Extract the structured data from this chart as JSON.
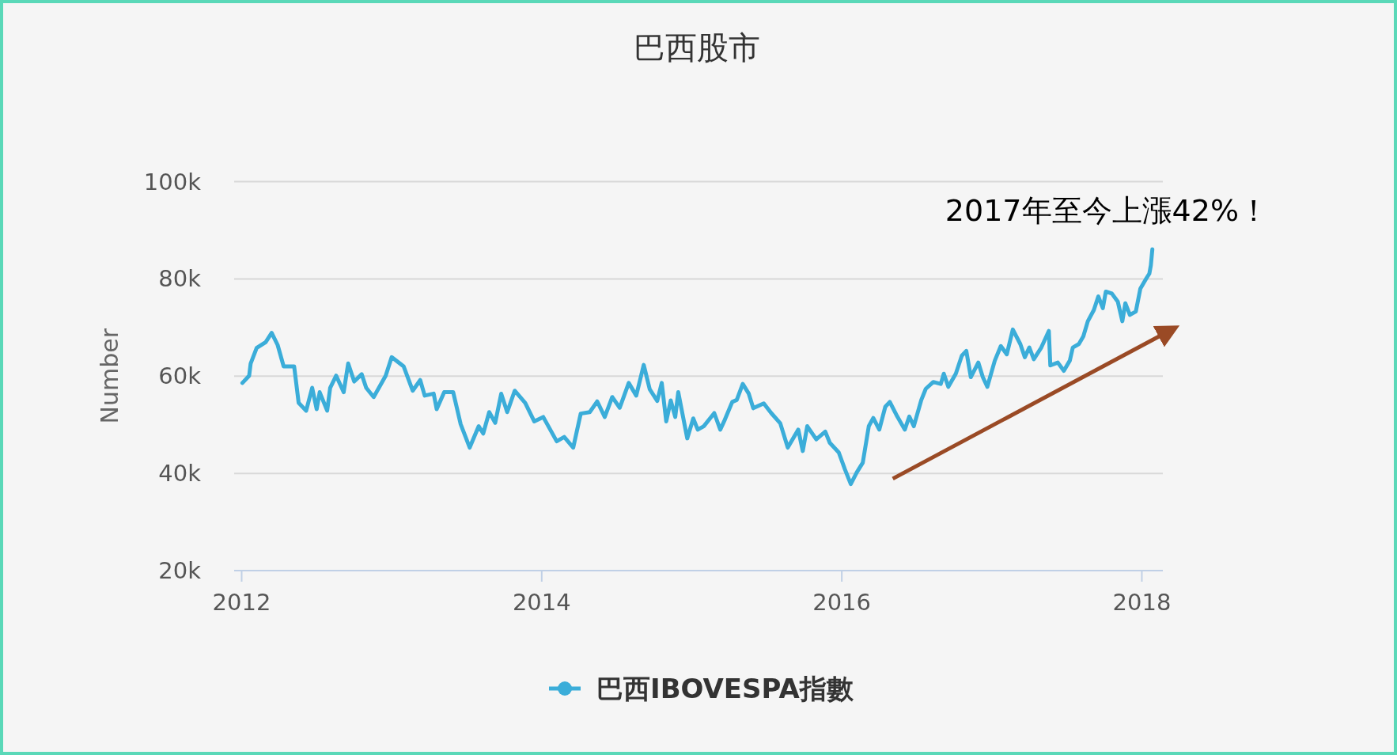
{
  "chart_data": {
    "type": "line",
    "title": "巴西股市",
    "ylabel": "Number",
    "annotations": [
      "2017年至今上漲42%！"
    ],
    "xlim": [
      2011.95,
      2018.14
    ],
    "xticks": [
      2012,
      2014,
      2016,
      2018
    ],
    "ylim": [
      20000,
      100000
    ],
    "yticks": [
      {
        "value": 20000,
        "label": "20k"
      },
      {
        "value": 40000,
        "label": "40k"
      },
      {
        "value": 60000,
        "label": "60k"
      },
      {
        "value": 80000,
        "label": "80k"
      },
      {
        "value": 100000,
        "label": "100k"
      }
    ],
    "grid": "y",
    "legend": "bottom",
    "series": [
      {
        "name": "巴西IBOVESPA指數",
        "color": "#3badd9",
        "x": [
          2012.005,
          2012.05,
          2012.06,
          2012.1,
          2012.16,
          2012.2,
          2012.24,
          2012.28,
          2012.35,
          2012.38,
          2012.43,
          2012.47,
          2012.5,
          2012.52,
          2012.57,
          2012.59,
          2012.63,
          2012.68,
          2012.71,
          2012.75,
          2012.8,
          2012.83,
          2012.88,
          2012.96,
          2013.0,
          2013.08,
          2013.14,
          2013.19,
          2013.22,
          2013.28,
          2013.3,
          2013.35,
          2013.41,
          2013.46,
          2013.52,
          2013.58,
          2013.61,
          2013.65,
          2013.69,
          2013.73,
          2013.77,
          2013.82,
          2013.89,
          2013.95,
          2014.01,
          2014.1,
          2014.15,
          2014.21,
          2014.26,
          2014.32,
          2014.37,
          2014.42,
          2014.47,
          2014.52,
          2014.58,
          2014.63,
          2014.68,
          2014.72,
          2014.77,
          2014.8,
          2014.83,
          2014.86,
          2014.89,
          2014.91,
          2014.97,
          2015.01,
          2015.04,
          2015.08,
          2015.15,
          2015.19,
          2015.22,
          2015.27,
          2015.3,
          2015.34,
          2015.38,
          2015.41,
          2015.48,
          2015.53,
          2015.59,
          2015.64,
          2015.71,
          2015.74,
          2015.77,
          2015.83,
          2015.89,
          2015.92,
          2015.98,
          2016.02,
          2016.06,
          2016.1,
          2016.14,
          2016.18,
          2016.21,
          2016.25,
          2016.29,
          2016.32,
          2016.37,
          2016.42,
          2016.45,
          2016.48,
          2016.53,
          2016.56,
          2016.61,
          2016.66,
          2016.68,
          2016.71,
          2016.76,
          2016.8,
          2016.83,
          2016.86,
          2016.91,
          2016.94,
          2016.97,
          2017.02,
          2017.06,
          2017.1,
          2017.14,
          2017.19,
          2017.22,
          2017.25,
          2017.28,
          2017.33,
          2017.38,
          2017.39,
          2017.44,
          2017.48,
          2017.52,
          2017.54,
          2017.58,
          2017.61,
          2017.64,
          2017.68,
          2017.71,
          2017.74,
          2017.76,
          2017.8,
          2017.84,
          2017.87,
          2017.89,
          2017.92,
          2017.96,
          2017.99,
          2018.03,
          2018.05,
          2018.06,
          2018.07
        ],
        "values": [
          58600,
          60100,
          62600,
          65800,
          67000,
          68900,
          66400,
          62000,
          62000,
          54500,
          52900,
          57600,
          53200,
          56700,
          52900,
          57600,
          60100,
          56700,
          62600,
          58900,
          60400,
          57600,
          55700,
          60100,
          63900,
          62000,
          57000,
          59200,
          56000,
          56400,
          53200,
          56700,
          56700,
          50100,
          45300,
          49700,
          48200,
          52600,
          50400,
          56400,
          52600,
          57000,
          54500,
          50700,
          51600,
          46600,
          47500,
          45300,
          52300,
          52600,
          54800,
          51600,
          55700,
          53500,
          58600,
          56000,
          62300,
          57300,
          54900,
          58600,
          50700,
          55000,
          51600,
          56700,
          47200,
          51300,
          49000,
          49700,
          52400,
          49000,
          51000,
          54700,
          55100,
          58400,
          56400,
          53400,
          54400,
          52400,
          50300,
          45300,
          49000,
          44600,
          49700,
          47000,
          48600,
          46300,
          44300,
          40900,
          37800,
          40200,
          42200,
          49700,
          51400,
          49000,
          53700,
          54700,
          51700,
          49000,
          51700,
          49700,
          55100,
          57400,
          58800,
          58400,
          60500,
          57800,
          60500,
          64200,
          65200,
          59800,
          62800,
          59800,
          57800,
          63200,
          66200,
          64500,
          69600,
          66600,
          63900,
          65900,
          63500,
          65900,
          69300,
          62200,
          62800,
          61100,
          63200,
          65900,
          66600,
          68200,
          71300,
          73600,
          76400,
          74000,
          77400,
          77000,
          75300,
          71300,
          75000,
          72600,
          73300,
          78000,
          80100,
          81100,
          82800,
          86100
        ]
      },
      {
        "type": "line",
        "color": "#9a4a25",
        "x": [
          2016.34,
          2018.14
        ],
        "values": [
          38900,
          68600
        ]
      }
    ]
  }
}
